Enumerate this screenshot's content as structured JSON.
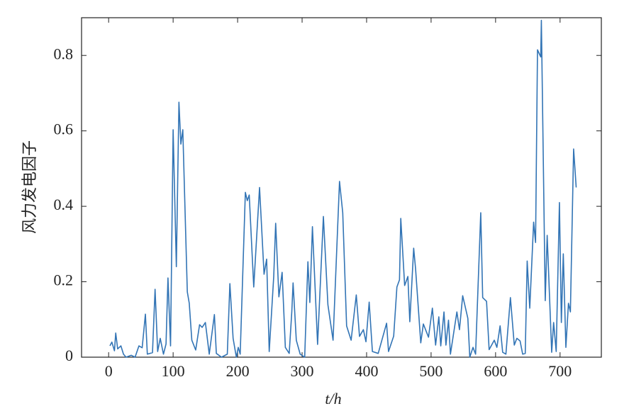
{
  "chart_data": {
    "type": "line",
    "x_label": "t/h",
    "y_label": "风力发电因子",
    "x": [
      2,
      5,
      9,
      11,
      14,
      19,
      23,
      27,
      35,
      41,
      47,
      52,
      57,
      60,
      68,
      72,
      76,
      80,
      85,
      89,
      92,
      96,
      100,
      105,
      109,
      112,
      115,
      122,
      125,
      129,
      135,
      141,
      145,
      150,
      156,
      164,
      167,
      175,
      184,
      188,
      193,
      198,
      201,
      204,
      212,
      215,
      218,
      225,
      234,
      241,
      245,
      249,
      256,
      259,
      264,
      269,
      274,
      280,
      284,
      286,
      291,
      297,
      304,
      309,
      312,
      316,
      324,
      333,
      340,
      348,
      358,
      363,
      369,
      376,
      384,
      389,
      395,
      399,
      404,
      409,
      418,
      431,
      434,
      442,
      447,
      451,
      453,
      459,
      464,
      467,
      473,
      476,
      484,
      488,
      496,
      502,
      507,
      512,
      515,
      520,
      523,
      527,
      530,
      540,
      544,
      549,
      557,
      560,
      565,
      569,
      577,
      580,
      586,
      590,
      598,
      602,
      607,
      611,
      616,
      623,
      629,
      633,
      638,
      642,
      646,
      649,
      653,
      659,
      662,
      665,
      670,
      671,
      677,
      680,
      687,
      690,
      694,
      699,
      702,
      705,
      709,
      713,
      716,
      721,
      725
    ],
    "series": [
      {
        "color": "#3274b5",
        "values": [
          0.03,
          0.04,
          0.017,
          0.064,
          0.022,
          0.03,
          0.008,
          0,
          0.005,
          0,
          0.03,
          0.025,
          0.114,
          0.008,
          0.012,
          0.18,
          0.015,
          0.05,
          0.008,
          0.035,
          0.21,
          0.03,
          0.603,
          0.24,
          0.676,
          0.565,
          0.603,
          0.173,
          0.143,
          0.045,
          0.019,
          0.086,
          0.079,
          0.092,
          0.008,
          0.113,
          0.01,
          0,
          0.008,
          0.195,
          0.05,
          0,
          0.026,
          0.008,
          0.437,
          0.415,
          0.43,
          0.186,
          0.45,
          0.22,
          0.26,
          0.015,
          0.214,
          0.355,
          0.16,
          0.225,
          0.026,
          0.01,
          0.12,
          0.197,
          0.045,
          0.008,
          0,
          0.253,
          0.145,
          0.346,
          0.034,
          0.373,
          0.139,
          0.045,
          0.466,
          0.383,
          0.083,
          0.045,
          0.165,
          0.055,
          0.073,
          0.041,
          0.146,
          0.015,
          0.01,
          0.09,
          0.015,
          0.056,
          0.186,
          0.205,
          0.368,
          0.19,
          0.214,
          0.094,
          0.289,
          0.233,
          0.038,
          0.088,
          0.053,
          0.13,
          0.032,
          0.107,
          0.03,
          0.12,
          0.032,
          0.098,
          0.008,
          0.12,
          0.073,
          0.163,
          0.103,
          0,
          0.026,
          0.008,
          0.383,
          0.158,
          0.148,
          0.02,
          0.045,
          0.026,
          0.083,
          0.013,
          0.008,
          0.158,
          0.032,
          0.05,
          0.043,
          0.008,
          0.01,
          0.255,
          0.13,
          0.358,
          0.304,
          0.815,
          0.796,
          0.893,
          0.15,
          0.323,
          0.013,
          0.092,
          0.015,
          0.41,
          0.092,
          0.274,
          0.026,
          0.143,
          0.12,
          0.552,
          0.45
        ]
      }
    ],
    "xlim": [
      -42,
      764
    ],
    "xticks": [
      0,
      100,
      200,
      300,
      400,
      500,
      600,
      700
    ],
    "ylim": [
      0,
      0.9
    ],
    "yticks": [
      0,
      0.2,
      0.4,
      0.6,
      0.8
    ]
  }
}
